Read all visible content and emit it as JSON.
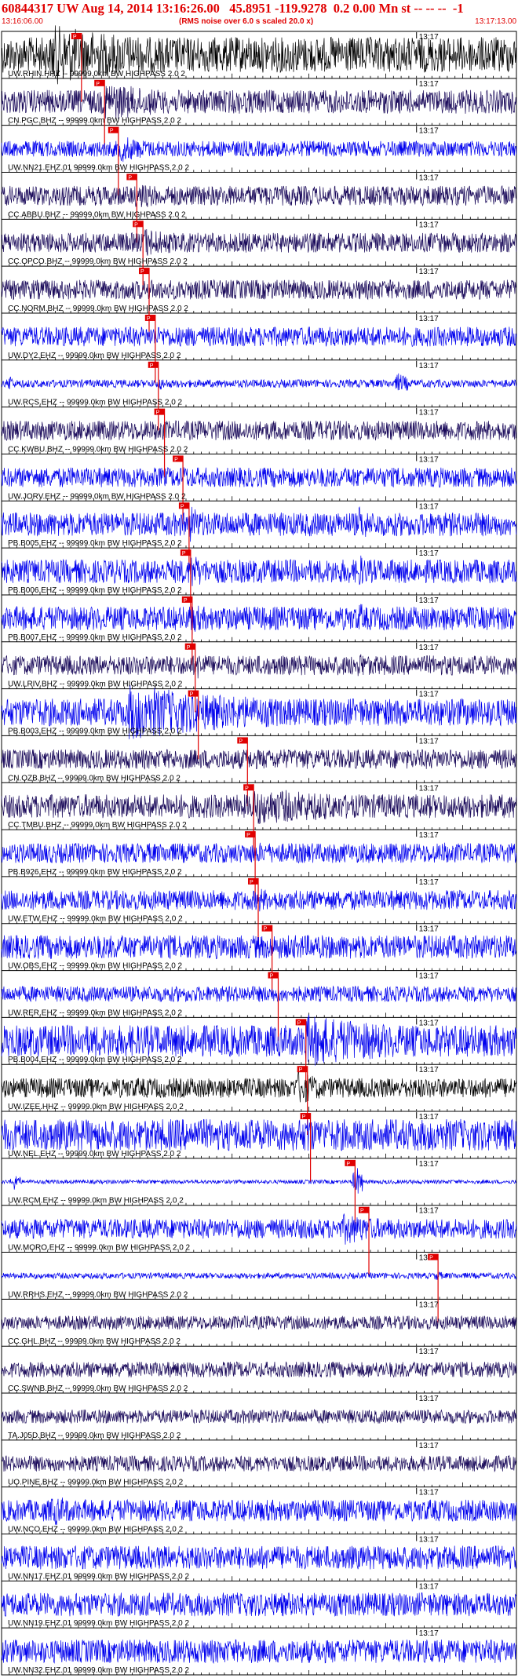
{
  "header": {
    "title": "60844317 UW Aug 14, 2014 13:16:26.00   45.8951 -119.9278  0.2 0.00 Mn st -- -- --  -1",
    "start_time": "13:16:06.00",
    "note": "(RMS noise over 6.0 s scaled 20.0 x)",
    "end_time": "13:17:13.00"
  },
  "colors": {
    "accent": "#e00000",
    "pick": "#e00000",
    "blue": "#0000ee",
    "navy": "#1a0a5a",
    "black": "#000000"
  },
  "chart_data": {
    "type": "line",
    "title": "60844317 UW Aug 14, 2014 13:16:26.00   45.8951 -119.9278  0.2 0.00 Mn st -- -- --  -1",
    "x_range": [
      "13:16:06.00",
      "13:17:13.00"
    ],
    "minute_label": "13:17",
    "minute_offset_s": 54,
    "duration_s": 67,
    "pick_label": "P",
    "series": [
      {
        "name": "UW.RHIN.HHZ -- 99999.0km BW  HIGHPASS  2.0  2",
        "color": "black",
        "pick_s": 10.4,
        "amp": 0.9,
        "burst": [
          [
            6,
            33,
            1.6
          ]
        ]
      },
      {
        "name": "CN.PGC.BHZ -- 99999.0km BW  HIGHPASS  2.0  2",
        "color": "navy",
        "pick_s": 13.4,
        "amp": 0.6,
        "burst": [
          [
            13,
            28,
            1.1
          ]
        ]
      },
      {
        "name": "UW.NN21.EHZ.01 99999.0km BW  HIGHPASS  2.0  2",
        "color": "blue",
        "pick_s": 15.2,
        "amp": 0.4,
        "burst": [
          [
            15,
            22,
            0.8
          ]
        ]
      },
      {
        "name": "CC.ABBU.BHZ -- 99999.0km BW  HIGHPASS  2.0  2",
        "color": "navy",
        "pick_s": 17.6,
        "amp": 0.5,
        "burst": [
          [
            17,
            25,
            0.8
          ]
        ]
      },
      {
        "name": "CC.OPCO.BHZ -- 99999.0km BW  HIGHPASS  2.0  2",
        "color": "navy",
        "pick_s": 18.4,
        "amp": 0.5,
        "burst": [
          [
            18,
            26,
            0.9
          ]
        ]
      },
      {
        "name": "CC.NORM.BHZ -- 99999.0km BW  HIGHPASS  2.0  2",
        "color": "navy",
        "pick_s": 19.2,
        "amp": 0.5,
        "burst": [
          [
            19,
            24,
            0.6
          ],
          [
            34,
            38,
            0.7
          ]
        ]
      },
      {
        "name": "UW.DY2.EHZ -- 99999.0km BW  HIGHPASS  2.0  2",
        "color": "blue",
        "pick_s": 20.0,
        "amp": 0.5,
        "burst": [
          [
            20,
            24,
            0.5
          ]
        ]
      },
      {
        "name": "UW.RCS.EHZ -- 99999.0km BW  HIGHPASS  2.0  2",
        "color": "blue",
        "pick_s": 20.4,
        "amp": 0.2,
        "burst": [
          [
            0.5,
            1.5,
            0.9
          ],
          [
            20,
            22,
            0.5
          ],
          [
            51,
            53,
            0.8
          ]
        ]
      },
      {
        "name": "CC.KWBU.BHZ -- 99999.0km BW  HIGHPASS  2.0  2",
        "color": "navy",
        "pick_s": 21.2,
        "amp": 0.5,
        "burst": [
          [
            21,
            26,
            0.6
          ]
        ]
      },
      {
        "name": "UW.JORV.EHZ -- 99999.0km BW  HIGHPASS  2.0  2",
        "color": "blue",
        "pick_s": 23.6,
        "amp": 0.5,
        "burst": [
          [
            23,
            30,
            0.7
          ]
        ]
      },
      {
        "name": "PB.B005.EHZ -- 99999.0km BW  HIGHPASS  2.0  2",
        "color": "blue",
        "pick_s": 24.4,
        "amp": 0.6,
        "burst": [
          [
            24,
            27,
            1.3
          ],
          [
            46,
            48,
            1.4
          ]
        ]
      },
      {
        "name": "PB.B006.EHZ -- 99999.0km BW  HIGHPASS  2.0  2",
        "color": "blue",
        "pick_s": 24.6,
        "amp": 0.6,
        "burst": [
          [
            24,
            27,
            1.3
          ],
          [
            46,
            48,
            1.3
          ]
        ]
      },
      {
        "name": "PB.B007.EHZ -- 99999.0km BW  HIGHPASS  2.0  2",
        "color": "blue",
        "pick_s": 24.8,
        "amp": 0.6,
        "burst": [
          [
            24,
            27,
            1.2
          ],
          [
            46,
            48,
            1.2
          ]
        ]
      },
      {
        "name": "UW.LRIV.BHZ -- 99999.0km BW  HIGHPASS  2.0  2",
        "color": "navy",
        "pick_s": 25.2,
        "amp": 0.5,
        "burst": [
          [
            25,
            28,
            1.0
          ],
          [
            46,
            48,
            1.1
          ]
        ]
      },
      {
        "name": "PB.B003.EHZ -- 99999.0km BW  HIGHPASS  2.0  2",
        "color": "blue",
        "pick_s": 25.6,
        "amp": 0.7,
        "burst": [
          [
            16,
            44,
            1.5
          ]
        ]
      },
      {
        "name": "CN.OZB.BHZ -- 99999.0km BW  HIGHPASS  2.0  2",
        "color": "navy",
        "pick_s": 32.0,
        "amp": 0.5,
        "burst": [
          [
            32,
            36,
            0.4
          ]
        ]
      },
      {
        "name": "CC.TMBU.BHZ -- 99999.0km BW  HIGHPASS  2.0  2",
        "color": "navy",
        "pick_s": 32.8,
        "amp": 0.6,
        "burst": [
          [
            32,
            65,
            1.0
          ]
        ]
      },
      {
        "name": "PB.B926.EHZ -- 99999.0km BW  HIGHPASS  2.0  2",
        "color": "blue",
        "pick_s": 33.0,
        "amp": 0.5,
        "burst": [
          [
            33,
            35,
            0.8
          ],
          [
            57,
            58,
            1.2
          ]
        ]
      },
      {
        "name": "UW.ETW.EHZ -- 99999.0km BW  HIGHPASS  2.0  2",
        "color": "blue",
        "pick_s": 33.4,
        "amp": 0.5,
        "burst": [
          [
            33,
            37,
            0.8
          ]
        ]
      },
      {
        "name": "UW.OBS.EHZ -- 99999.0km BW  HIGHPASS  2.0  2",
        "color": "blue",
        "pick_s": 35.2,
        "amp": 0.6,
        "burst": [
          [
            35,
            45,
            0.7
          ]
        ]
      },
      {
        "name": "UW.RER.EHZ -- 99999.0km BW  HIGHPASS  2.0  2",
        "color": "blue",
        "pick_s": 36.0,
        "amp": 0.4,
        "burst": [
          [
            36,
            40,
            0.4
          ]
        ]
      },
      {
        "name": "PB.B004.EHZ -- 99999.0km BW  HIGHPASS  2.0  2",
        "color": "blue",
        "pick_s": 39.6,
        "amp": 0.8,
        "burst": [
          [
            39,
            66,
            1.4
          ]
        ]
      },
      {
        "name": "UW.IZEE.HHZ -- 99999.0km BW  HIGHPASS  2.0  2",
        "color": "black",
        "pick_s": 39.8,
        "amp": 0.5,
        "burst": [
          [
            38,
            43,
            1.1
          ],
          [
            45,
            47,
            0.7
          ]
        ]
      },
      {
        "name": "UW.NEL.EHZ -- 99999.0km BW  HIGHPASS  2.0  2",
        "color": "blue",
        "pick_s": 40.2,
        "amp": 0.8,
        "burst": [
          [
            39,
            43,
            1.3
          ]
        ]
      },
      {
        "name": "UW.RCM.EHZ -- 99999.0km BW  HIGHPASS  2.0  2",
        "color": "blue",
        "pick_s": 46.0,
        "amp": 0.1,
        "burst": [
          [
            1,
            2.5,
            0.7
          ],
          [
            45.5,
            47,
            1.3
          ]
        ]
      },
      {
        "name": "UW.MORO.EHZ -- 99999.0km BW  HIGHPASS  2.0  2",
        "color": "blue",
        "pick_s": 47.8,
        "amp": 0.5,
        "burst": [
          [
            44,
            55,
            0.9
          ]
        ]
      },
      {
        "name": "UW.RRHS.EHZ -- 99999.0km BW  HIGHPASS  2.0  2",
        "color": "blue",
        "pick_s": 56.8,
        "amp": 0.15,
        "burst": [
          [
            56,
            57.5,
            0.4
          ]
        ]
      },
      {
        "name": "CC.GHL.BHZ -- 99999.0km BW  HIGHPASS  2.0  2",
        "color": "navy",
        "amp": 0.35,
        "burst": []
      },
      {
        "name": "CC.SWNB.BHZ -- 99999.0km BW  HIGHPASS  2.0  2",
        "color": "navy",
        "amp": 0.4,
        "burst": [
          [
            50,
            52,
            0.6
          ]
        ]
      },
      {
        "name": "TA.J05D.BHZ -- 99999.0km BW  HIGHPASS  2.0  2",
        "color": "navy",
        "amp": 0.35,
        "burst": []
      },
      {
        "name": "UO.PINE.BHZ -- 99999.0km BW  HIGHPASS  2.0  2",
        "color": "navy",
        "amp": 0.4,
        "burst": []
      },
      {
        "name": "UW.NCO.EHZ -- 99999.0km BW  HIGHPASS  2.0  2",
        "color": "blue",
        "amp": 0.55,
        "burst": [
          [
            6,
            14,
            0.9
          ]
        ]
      },
      {
        "name": "UW.NN17.EHZ.01 99999.0km BW  HIGHPASS  2.0  2",
        "color": "blue",
        "amp": 0.6,
        "burst": []
      },
      {
        "name": "UW.NN19.EHZ.01 99999.0km BW  HIGHPASS  2.0  2",
        "color": "blue",
        "amp": 0.6,
        "burst": []
      },
      {
        "name": "UW.NN32.EHZ.01 99999.0km BW  HIGHPASS  2.0  2",
        "color": "blue",
        "amp": 0.6,
        "burst": []
      }
    ]
  }
}
